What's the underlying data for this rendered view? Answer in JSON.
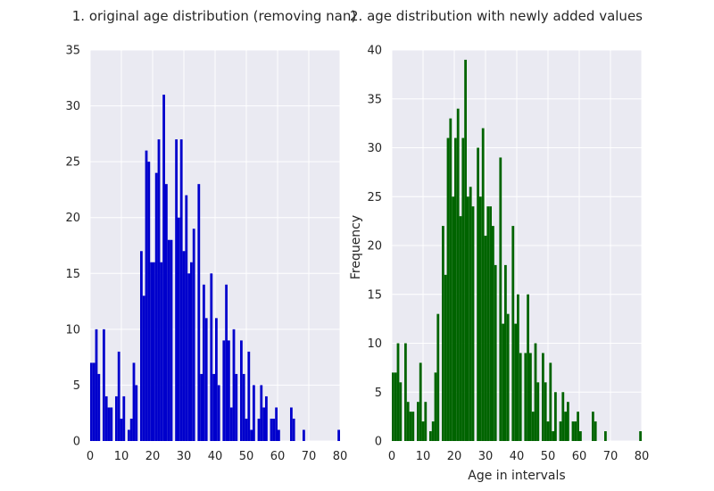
{
  "chart_data": [
    {
      "type": "bar",
      "title": "1. original age distribution (removing nan)",
      "xlabel": "",
      "ylabel": "",
      "xlim": [
        0,
        80
      ],
      "ylim": [
        0,
        35
      ],
      "xticks": [
        0,
        10,
        20,
        30,
        40,
        50,
        60,
        70,
        80
      ],
      "yticks": [
        0,
        5,
        10,
        15,
        20,
        25,
        30,
        35
      ],
      "grid": true,
      "color": "#0000cc",
      "bin_width": 0.8,
      "bins_start": [
        0,
        0.8,
        1.6,
        2.4,
        3.2,
        4.0,
        4.8,
        5.6,
        6.4,
        7.2,
        8.0,
        8.8,
        9.6,
        10.4,
        11.2,
        12.0,
        12.8,
        13.6,
        14.4,
        15.2,
        16.0,
        16.8,
        17.6,
        18.4,
        19.2,
        20.0,
        20.8,
        21.6,
        22.4,
        23.2,
        24.0,
        24.8,
        25.6,
        26.4,
        27.2,
        28.0,
        28.8,
        29.6,
        30.4,
        31.2,
        32.0,
        32.8,
        33.6,
        34.4,
        35.2,
        36.0,
        36.8,
        37.6,
        38.4,
        39.2,
        40.0,
        40.8,
        41.6,
        42.4,
        43.2,
        44.0,
        44.8,
        45.6,
        46.4,
        47.2,
        48.0,
        48.8,
        49.6,
        50.4,
        51.2,
        52.0,
        52.8,
        53.6,
        54.4,
        55.2,
        56.0,
        56.8,
        57.6,
        58.4,
        59.2,
        60.0,
        60.8,
        61.6,
        62.4,
        63.2,
        64.0,
        64.8,
        65.6,
        66.4,
        67.2,
        68.0,
        68.8,
        69.6,
        70.4,
        71.2,
        72.0,
        72.8,
        73.6,
        74.4,
        75.2,
        76.0,
        76.8,
        77.6,
        78.4,
        79.2
      ],
      "values": [
        7,
        7,
        10,
        6,
        0,
        10,
        4,
        3,
        3,
        0,
        4,
        8,
        2,
        4,
        0,
        1,
        2,
        7,
        5,
        0,
        17,
        13,
        26,
        25,
        16,
        16,
        24,
        27,
        16,
        31,
        23,
        18,
        18,
        0,
        27,
        20,
        27,
        17,
        22,
        15,
        16,
        19,
        0,
        23,
        6,
        14,
        11,
        0,
        15,
        6,
        11,
        5,
        0,
        9,
        14,
        9,
        3,
        10,
        6,
        0,
        9,
        6,
        2,
        8,
        1,
        5,
        0,
        2,
        5,
        3,
        4,
        0,
        2,
        2,
        3,
        1,
        0,
        0,
        0,
        0,
        3,
        2,
        0,
        0,
        0,
        1,
        0,
        0,
        0,
        0,
        0,
        0,
        0,
        0,
        0,
        0,
        0,
        0,
        0,
        1
      ]
    },
    {
      "type": "bar",
      "title": "2. age distribution with newly added values",
      "xlabel": "Age in intervals",
      "ylabel": "Frequency",
      "xlim": [
        0,
        80
      ],
      "ylim": [
        0,
        40
      ],
      "xticks": [
        0,
        10,
        20,
        30,
        40,
        50,
        60,
        70,
        80
      ],
      "yticks": [
        0,
        5,
        10,
        15,
        20,
        25,
        30,
        35,
        40
      ],
      "grid": true,
      "color": "#006400",
      "bin_width": 0.8,
      "bins_start": [
        0,
        0.8,
        1.6,
        2.4,
        3.2,
        4.0,
        4.8,
        5.6,
        6.4,
        7.2,
        8.0,
        8.8,
        9.6,
        10.4,
        11.2,
        12.0,
        12.8,
        13.6,
        14.4,
        15.2,
        16.0,
        16.8,
        17.6,
        18.4,
        19.2,
        20.0,
        20.8,
        21.6,
        22.4,
        23.2,
        24.0,
        24.8,
        25.6,
        26.4,
        27.2,
        28.0,
        28.8,
        29.6,
        30.4,
        31.2,
        32.0,
        32.8,
        33.6,
        34.4,
        35.2,
        36.0,
        36.8,
        37.6,
        38.4,
        39.2,
        40.0,
        40.8,
        41.6,
        42.4,
        43.2,
        44.0,
        44.8,
        45.6,
        46.4,
        47.2,
        48.0,
        48.8,
        49.6,
        50.4,
        51.2,
        52.0,
        52.8,
        53.6,
        54.4,
        55.2,
        56.0,
        56.8,
        57.6,
        58.4,
        59.2,
        60.0,
        60.8,
        61.6,
        62.4,
        63.2,
        64.0,
        64.8,
        65.6,
        66.4,
        67.2,
        68.0,
        68.8,
        69.6,
        70.4,
        71.2,
        72.0,
        72.8,
        73.6,
        74.4,
        75.2,
        76.0,
        76.8,
        77.6,
        78.4,
        79.2
      ],
      "values": [
        7,
        7,
        10,
        6,
        0,
        10,
        4,
        3,
        3,
        0,
        4,
        8,
        2,
        4,
        0,
        1,
        2,
        7,
        13,
        0,
        22,
        17,
        31,
        33,
        25,
        31,
        34,
        23,
        31,
        39,
        25,
        26,
        24,
        0,
        30,
        25,
        32,
        21,
        24,
        24,
        22,
        18,
        0,
        29,
        12,
        18,
        13,
        0,
        22,
        12,
        15,
        9,
        0,
        9,
        15,
        9,
        3,
        10,
        6,
        0,
        9,
        6,
        2,
        8,
        1,
        5,
        0,
        2,
        5,
        3,
        4,
        0,
        2,
        2,
        3,
        1,
        0,
        0,
        0,
        0,
        3,
        2,
        0,
        0,
        0,
        1,
        0,
        0,
        0,
        0,
        0,
        0,
        0,
        0,
        0,
        0,
        0,
        0,
        0,
        1
      ]
    }
  ]
}
